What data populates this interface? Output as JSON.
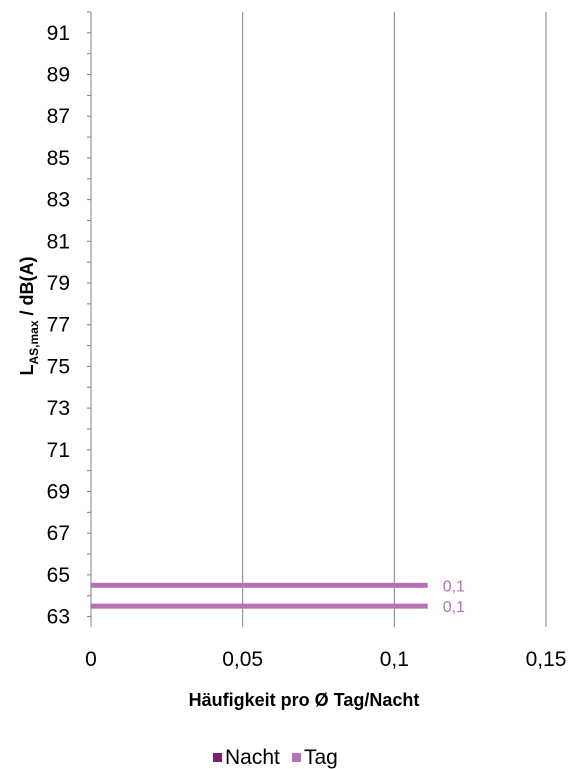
{
  "chart_data": {
    "type": "bar",
    "orientation": "horizontal",
    "title": "",
    "xlabel": "Häufigkeit pro Ø Tag/Nacht",
    "ylabel": {
      "main": "L",
      "subscript": "AS,max",
      "suffix": " / dB(A)"
    },
    "xlim": [
      0,
      0.15
    ],
    "x_ticks": [
      "0",
      "0,05",
      "0,1",
      "0,15"
    ],
    "ylim": [
      62.5,
      92
    ],
    "y_tick_labels": [
      "91",
      "89",
      "87",
      "85",
      "83",
      "81",
      "79",
      "77",
      "75",
      "73",
      "71",
      "69",
      "67",
      "65",
      "63"
    ],
    "grid": "vertical",
    "legend_position": "bottom",
    "series": [
      {
        "name": "Nacht",
        "color": "#7b1f6f",
        "y": [],
        "values": []
      },
      {
        "name": "Tag",
        "color": "#b86fb4",
        "y": [
          64.5,
          63.5
        ],
        "values": [
          0.111,
          0.111
        ],
        "labels": [
          "0,1",
          "0,1"
        ]
      }
    ]
  }
}
